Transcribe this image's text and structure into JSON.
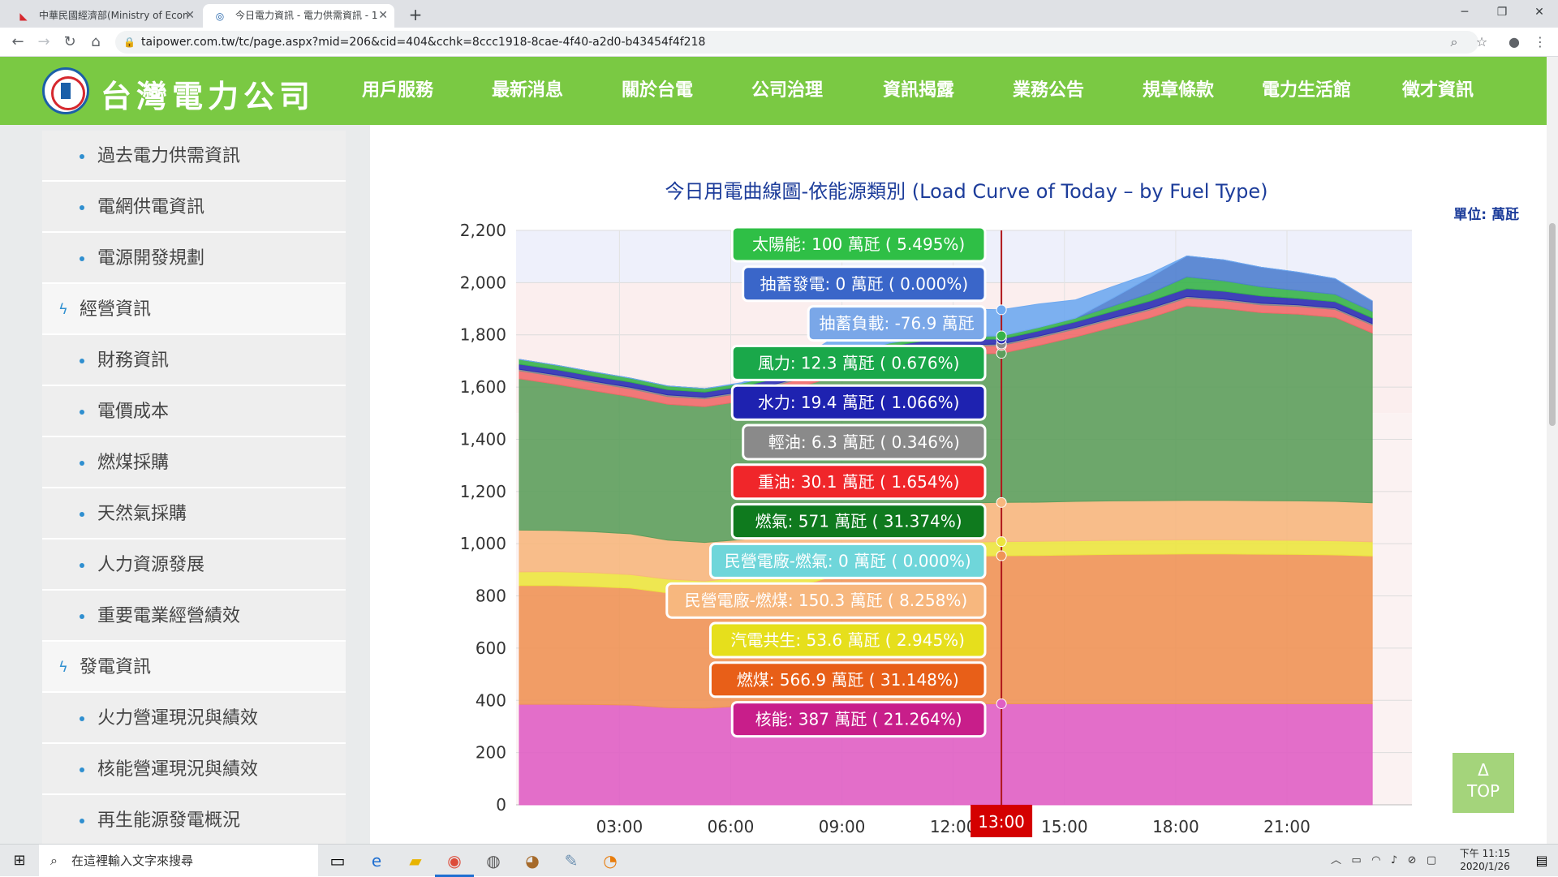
{
  "browser": {
    "tabs": [
      {
        "title": "中華民國經濟部(Ministry of Econ",
        "active": false
      },
      {
        "title": "今日電力資訊 - 電力供需資訊 - 1",
        "active": true
      }
    ],
    "url": "taipower.com.tw/tc/page.aspx?mid=206&cid=404&cchk=8ccc1918-8cae-4f40-a2d0-b43454f4f218"
  },
  "site": {
    "logo_text": "台灣電力公司",
    "nav": [
      "用戶服務",
      "最新消息",
      "關於台電",
      "公司治理",
      "資訊揭露",
      "業務公告",
      "規章條款",
      "電力生活館",
      "徵才資訊"
    ],
    "active_nav": "資訊揭露"
  },
  "sidebar": {
    "items": [
      {
        "label": "過去電力供需資訊",
        "type": "sub"
      },
      {
        "label": "電網供電資訊",
        "type": "sub"
      },
      {
        "label": "電源開發規劃",
        "type": "sub"
      },
      {
        "label": "經營資訊",
        "type": "cat"
      },
      {
        "label": "財務資訊",
        "type": "sub"
      },
      {
        "label": "電價成本",
        "type": "sub"
      },
      {
        "label": "燃煤採購",
        "type": "sub"
      },
      {
        "label": "天然氣採購",
        "type": "sub"
      },
      {
        "label": "人力資源發展",
        "type": "sub"
      },
      {
        "label": "重要電業經營績效",
        "type": "sub"
      },
      {
        "label": "發電資訊",
        "type": "cat"
      },
      {
        "label": "火力營運現況與績效",
        "type": "sub"
      },
      {
        "label": "核能營運現況與績效",
        "type": "sub"
      },
      {
        "label": "再生能源發電概況",
        "type": "sub"
      }
    ]
  },
  "chart_data": {
    "type": "area",
    "title": "今日用電曲線圖-依能源類別 (Load Curve of Today – by Fuel Type)",
    "unit_label": "單位: 萬瓩",
    "ylim": [
      0,
      2200
    ],
    "yticks": [
      "0",
      "200",
      "400",
      "600",
      "800",
      "1,000",
      "1,200",
      "1,400",
      "1,600",
      "1,800",
      "2,000",
      "2,200"
    ],
    "xticks": [
      "03:00",
      "06:00",
      "09:00",
      "12:00",
      "15:00",
      "18:00",
      "21:00"
    ],
    "x_hours": [
      0,
      1,
      2,
      3,
      4,
      5,
      6,
      7,
      8,
      9,
      10,
      11,
      12,
      13,
      14,
      15,
      16,
      17,
      18,
      19,
      20,
      21,
      22,
      23
    ],
    "stack_order": [
      "核能",
      "燃煤",
      "汽電共生",
      "民營電廠-燃煤",
      "民營電廠-燃氣",
      "燃氣",
      "重油",
      "輕油",
      "水力",
      "風力",
      "抽蓄負載",
      "抽蓄發電",
      "太陽能"
    ],
    "colors": {
      "核能": "#e05fc4",
      "燃煤": "#ef9457",
      "汽電共生": "#ece53f",
      "民營電廠-燃煤": "#f7b77e",
      "民營電廠-燃氣": "#6fd6da",
      "燃氣": "#5d9e5c",
      "重油": "#f06a6a",
      "輕油": "#8a8a8a",
      "水力": "#2b2db3",
      "風力": "#36b34a",
      "抽蓄負載": "#7aa7e8",
      "抽蓄發電": "#4f7fcf",
      "太陽能": "#6ea9f0"
    },
    "series": [
      {
        "name": "核能",
        "values": [
          385,
          385,
          384,
          382,
          372,
          370,
          378,
          383,
          386,
          387,
          387,
          387,
          387,
          387,
          387,
          387,
          387,
          387,
          387,
          387,
          387,
          387,
          387,
          387
        ]
      },
      {
        "name": "燃煤",
        "values": [
          455,
          455,
          452,
          448,
          440,
          435,
          440,
          450,
          470,
          510,
          540,
          560,
          565,
          567,
          568,
          570,
          572,
          573,
          574,
          574,
          573,
          572,
          570,
          566
        ]
      },
      {
        "name": "汽電共生",
        "values": [
          52,
          53,
          53,
          52,
          52,
          52,
          52,
          53,
          53,
          53,
          53,
          54,
          54,
          54,
          54,
          54,
          54,
          54,
          54,
          54,
          54,
          54,
          54,
          54
        ]
      },
      {
        "name": "民營電廠-燃煤",
        "values": [
          160,
          158,
          157,
          156,
          150,
          148,
          146,
          148,
          150,
          150,
          151,
          150,
          150,
          150,
          150,
          151,
          151,
          151,
          151,
          151,
          151,
          151,
          151,
          150
        ]
      },
      {
        "name": "民營電廠-燃氣",
        "values": [
          0,
          0,
          0,
          0,
          0,
          0,
          0,
          0,
          0,
          0,
          0,
          0,
          0,
          0,
          0,
          0,
          0,
          0,
          0,
          0,
          0,
          0,
          0,
          0
        ]
      },
      {
        "name": "燃氣",
        "values": [
          580,
          560,
          540,
          525,
          520,
          520,
          530,
          545,
          560,
          565,
          570,
          572,
          570,
          571,
          600,
          630,
          665,
          700,
          745,
          735,
          720,
          715,
          705,
          650
        ]
      },
      {
        "name": "重油",
        "values": [
          30,
          30,
          30,
          30,
          30,
          30,
          30,
          30,
          30,
          30,
          30,
          30,
          30,
          30,
          30,
          30,
          30,
          30,
          30,
          30,
          30,
          30,
          30,
          30
        ]
      },
      {
        "name": "輕油",
        "values": [
          6,
          6,
          6,
          6,
          6,
          6,
          6,
          6,
          6,
          6,
          6,
          6,
          6,
          6,
          6,
          6,
          6,
          6,
          6,
          6,
          6,
          6,
          6,
          6
        ]
      },
      {
        "name": "水力",
        "values": [
          20,
          20,
          20,
          20,
          20,
          20,
          20,
          20,
          20,
          20,
          20,
          20,
          20,
          19,
          20,
          22,
          25,
          28,
          30,
          30,
          28,
          25,
          24,
          22
        ]
      },
      {
        "name": "風力",
        "values": [
          18,
          17,
          16,
          15,
          14,
          13,
          13,
          12,
          12,
          12,
          12,
          12,
          12,
          12,
          13,
          14,
          20,
          30,
          45,
          40,
          35,
          30,
          28,
          25
        ]
      },
      {
        "name": "抽蓄負載",
        "values": [
          -70,
          -75,
          -78,
          -78,
          -80,
          -78,
          -75,
          -70,
          -60,
          -50,
          -45,
          -60,
          -75,
          -77,
          -60,
          -30,
          0,
          0,
          0,
          0,
          0,
          0,
          0,
          0
        ]
      },
      {
        "name": "抽蓄發電",
        "values": [
          0,
          0,
          0,
          0,
          0,
          0,
          0,
          0,
          0,
          0,
          0,
          0,
          0,
          0,
          0,
          0,
          30,
          60,
          80,
          80,
          75,
          70,
          60,
          40
        ]
      },
      {
        "name": "太陽能",
        "values": [
          0,
          0,
          0,
          0,
          0,
          0,
          2,
          20,
          60,
          100,
          120,
          115,
          105,
          100,
          90,
          70,
          45,
          15,
          0,
          0,
          0,
          0,
          0,
          0
        ]
      }
    ],
    "hover": {
      "time_label": "13:00",
      "hour": 13,
      "tooltips": [
        {
          "name": "太陽能",
          "text": "太陽能: 100 萬瓩 ( 5.495%)",
          "bg": "#2fbf46"
        },
        {
          "name": "抽蓄發電",
          "text": "抽蓄發電: 0 萬瓩 ( 0.000%)",
          "bg": "#3a66c9"
        },
        {
          "name": "抽蓄負載",
          "text": "抽蓄負載: -76.9 萬瓩",
          "bg": "#7aa7e8"
        },
        {
          "name": "風力",
          "text": "風力: 12.3 萬瓩 ( 0.676%)",
          "bg": "#1aa84a"
        },
        {
          "name": "水力",
          "text": "水力: 19.4 萬瓩 ( 1.066%)",
          "bg": "#1e22b0"
        },
        {
          "name": "輕油",
          "text": "輕油: 6.3 萬瓩 ( 0.346%)",
          "bg": "#8a8a8a"
        },
        {
          "name": "重油",
          "text": "重油: 30.1 萬瓩 ( 1.654%)",
          "bg": "#f0262a"
        },
        {
          "name": "燃氣",
          "text": "燃氣: 571 萬瓩 ( 31.374%)",
          "bg": "#0f7a1e"
        },
        {
          "name": "民營電廠-燃氣",
          "text": "民營電廠-燃氣: 0 萬瓩 ( 0.000%)",
          "bg": "#6fd6da"
        },
        {
          "name": "民營電廠-燃煤",
          "text": "民營電廠-燃煤: 150.3 萬瓩 ( 8.258%)",
          "bg": "#f7b77e"
        },
        {
          "name": "汽電共生",
          "text": "汽電共生: 53.6 萬瓩 ( 2.945%)",
          "bg": "#e6df1c"
        },
        {
          "name": "燃煤",
          "text": "燃煤: 566.9 萬瓩 ( 31.148%)",
          "bg": "#e85f18"
        },
        {
          "name": "核能",
          "text": "核能: 387 萬瓩 ( 21.264%)",
          "bg": "#c81e8a"
        }
      ]
    }
  },
  "scroll_top": {
    "arrow": "Δ",
    "label": "TOP"
  },
  "taskbar": {
    "search_placeholder": "在這裡輸入文字來搜尋",
    "time": "下午 11:15",
    "date": "2020/1/26"
  }
}
